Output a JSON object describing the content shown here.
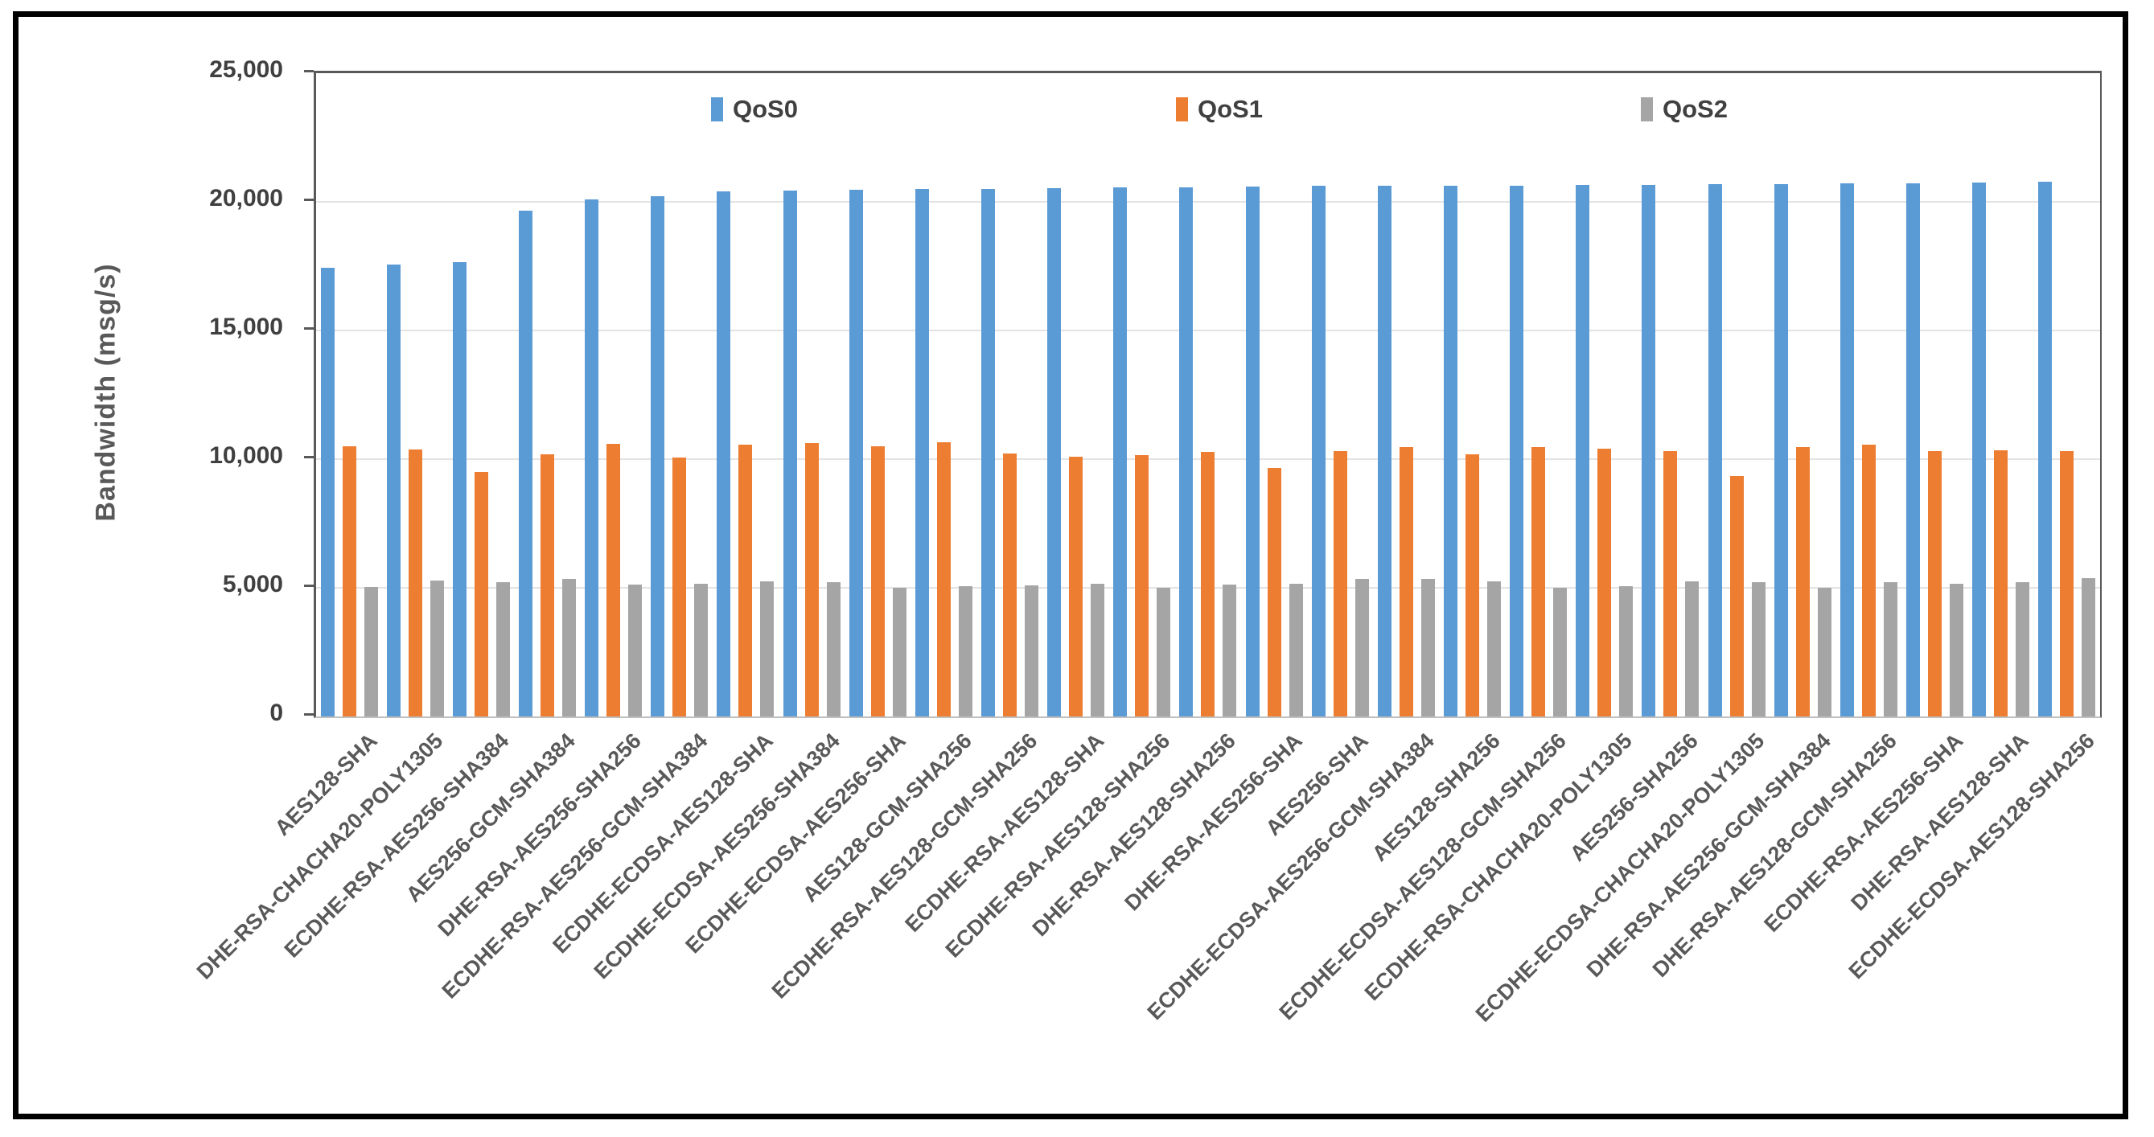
{
  "figure": {
    "y_axis_title": "Bandwidth (msg/s)",
    "y_tick_labels": [
      "0",
      "5,000",
      "10,000",
      "15,000",
      "20,000",
      "25,000"
    ]
  },
  "legend": {
    "items": [
      {
        "label": "QoS0",
        "color": "#5B9BD5"
      },
      {
        "label": "QoS1",
        "color": "#ED7D31"
      },
      {
        "label": "QoS2",
        "color": "#A5A5A5"
      }
    ]
  },
  "colors": {
    "gridline": "#E3E3E3",
    "axis_line": "#595959",
    "tick_label": "#404040",
    "x_label": "#595959",
    "outer_frame": "#000000"
  },
  "chart_data": {
    "type": "bar",
    "title": "",
    "xlabel": "",
    "ylabel": "Bandwidth (msg/s)",
    "ylim": [
      0,
      25000
    ],
    "ytick_interval": 5000,
    "grid": true,
    "legend_position": "top-inside-horizontal",
    "categories": [
      "AES128-SHA",
      "DHE-RSA-CHACHA20-POLY1305",
      "ECDHE-RSA-AES256-SHA384",
      "AES256-GCM-SHA384",
      "DHE-RSA-AES256-SHA256",
      "ECDHE-RSA-AES256-GCM-SHA384",
      "ECDHE-ECDSA-AES128-SHA",
      "ECDHE-ECDSA-AES256-SHA384",
      "ECDHE-ECDSA-AES256-SHA",
      "AES128-GCM-SHA256",
      "ECDHE-RSA-AES128-GCM-SHA256",
      "ECDHE-RSA-AES128-SHA",
      "ECDHE-RSA-AES128-SHA256",
      "DHE-RSA-AES128-SHA256",
      "DHE-RSA-AES256-SHA",
      "AES256-SHA",
      "ECDHE-ECDSA-AES256-GCM-SHA384",
      "AES128-SHA256",
      "ECDHE-ECDSA-AES128-GCM-SHA256",
      "ECDHE-RSA-CHACHA20-POLY1305",
      "AES256-SHA256",
      "ECDHE-ECDSA-CHACHA20-POLY1305",
      "DHE-RSA-AES256-GCM-SHA384",
      "DHE-RSA-AES128-GCM-SHA256",
      "ECDHE-RSA-AES256-SHA",
      "DHE-RSA-AES128-SHA",
      "ECDHE-ECDSA-AES128-SHA256"
    ],
    "series": [
      {
        "name": "QoS0",
        "color": "#5B9BD5",
        "values": [
          17450,
          17560,
          17650,
          19660,
          20080,
          20210,
          20400,
          20430,
          20460,
          20490,
          20510,
          20530,
          20550,
          20570,
          20590,
          20610,
          20620,
          20630,
          20640,
          20660,
          20670,
          20690,
          20700,
          20710,
          20730,
          20760,
          20790
        ]
      },
      {
        "name": "QoS1",
        "color": "#ED7D31",
        "values": [
          10500,
          10380,
          9500,
          10200,
          10590,
          10060,
          10570,
          10620,
          10500,
          10650,
          10230,
          10080,
          10160,
          10270,
          9650,
          10310,
          10460,
          10200,
          10460,
          10400,
          10310,
          9350,
          10470,
          10550,
          10310,
          10330,
          10310
        ]
      },
      {
        "name": "QoS2",
        "color": "#A5A5A5",
        "values": [
          5020,
          5280,
          5230,
          5340,
          5110,
          5170,
          5250,
          5230,
          5000,
          5050,
          5100,
          5150,
          5000,
          5110,
          5150,
          5330,
          5350,
          5250,
          5010,
          5060,
          5260,
          5210,
          5000,
          5210,
          5160,
          5210,
          5360
        ]
      }
    ]
  }
}
